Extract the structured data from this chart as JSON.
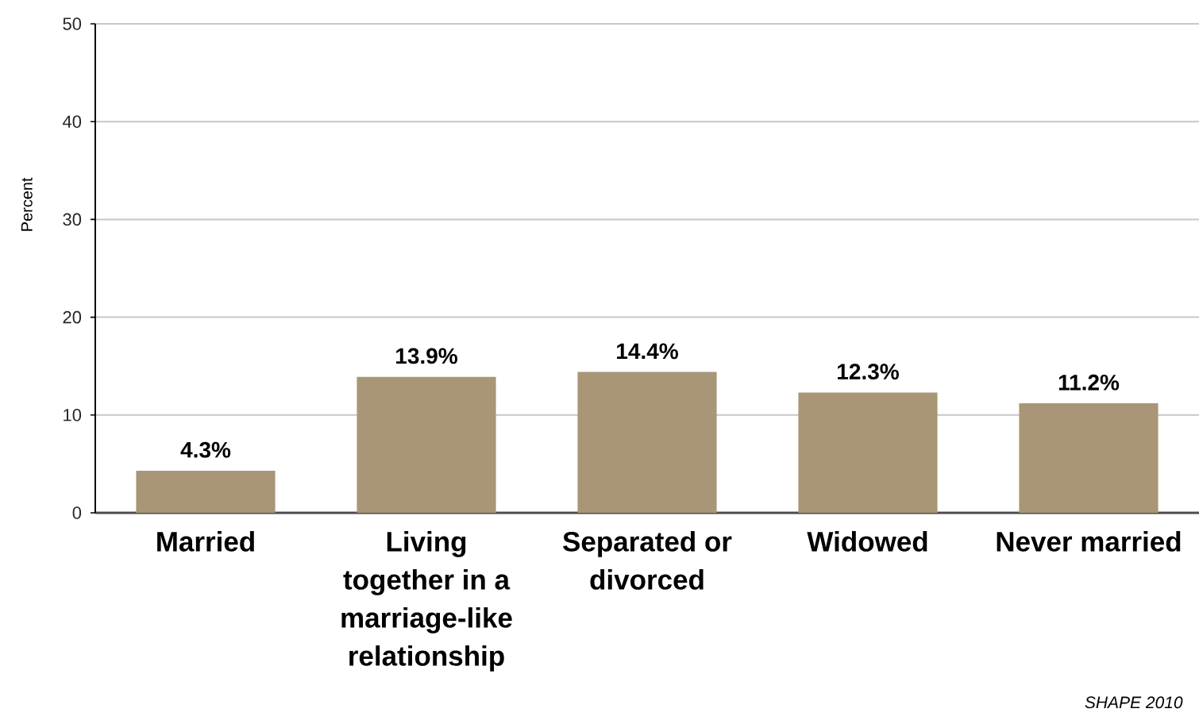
{
  "chart_data": {
    "type": "bar",
    "ylabel": "Percent",
    "categories": [
      "Married",
      "Living together in a marriage-like relationship",
      "Separated or divorced",
      "Widowed",
      "Never married"
    ],
    "values": [
      4.3,
      13.9,
      14.4,
      12.3,
      11.2
    ],
    "color": "#a89676",
    "value_labels": [
      "4.3%",
      "13.9%",
      "14.4%",
      "12.3%",
      "11.2%"
    ],
    "ylim": [
      0,
      50
    ],
    "yticks": [
      0,
      10,
      20,
      30,
      40,
      50
    ],
    "grid": "y",
    "annotations": [
      "SHAPE 2010"
    ]
  }
}
